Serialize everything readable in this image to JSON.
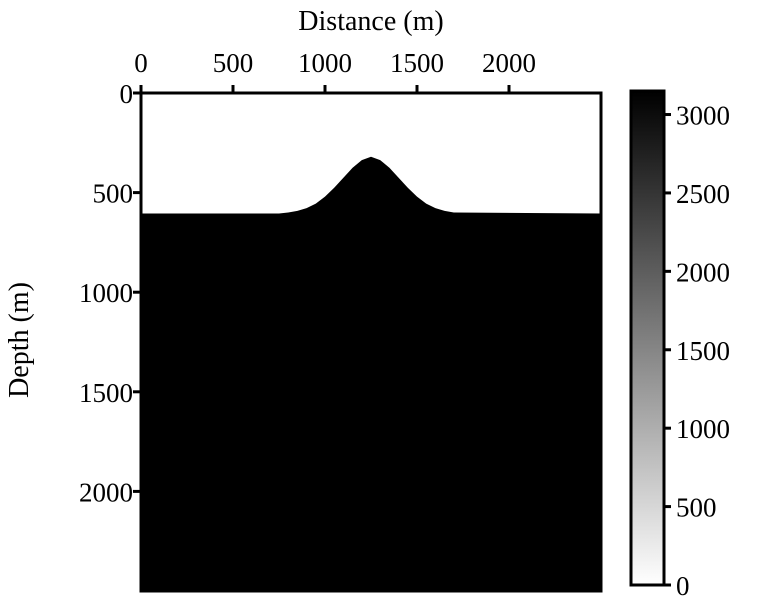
{
  "chart_data": {
    "type": "heatmap",
    "title": "",
    "xlabel": "Distance (m)",
    "ylabel": "Depth (m)",
    "x_axis_position": "top",
    "xlim": [
      0,
      2500
    ],
    "ylim": [
      2500,
      0
    ],
    "xticks": [
      0,
      500,
      1000,
      1500,
      2000
    ],
    "xtick_labels": [
      "0",
      "500",
      "1000",
      "1500",
      "2000"
    ],
    "yticks": [
      0,
      500,
      1000,
      1500,
      2000
    ],
    "ytick_labels": [
      "0",
      "500",
      "1000",
      "1500",
      "2000"
    ],
    "colormap": "gray (white = 0, black = max)",
    "colorbar": {
      "position": "right",
      "range": [
        0,
        3150
      ],
      "ticks": [
        0,
        500,
        1000,
        1500,
        2000,
        2500,
        3000
      ],
      "tick_labels": [
        "0",
        "500",
        "1000",
        "1500",
        "2000",
        "2500",
        "3000"
      ],
      "color_low": "#ffffff",
      "color_high": "#000000"
    },
    "regions": [
      {
        "value": 0,
        "color": "#ffffff",
        "description_of_extent": "above interface"
      },
      {
        "value": 3150,
        "color": "#000000",
        "description_of_extent": "below interface"
      }
    ],
    "interface": {
      "x": [
        0,
        750,
        800,
        850,
        900,
        950,
        1000,
        1050,
        1100,
        1150,
        1200,
        1250,
        1300,
        1350,
        1400,
        1450,
        1500,
        1550,
        1600,
        1650,
        1700,
        2500
      ],
      "depth": [
        605,
        605,
        600,
        592,
        578,
        555,
        520,
        476,
        425,
        375,
        337,
        320,
        337,
        375,
        425,
        476,
        520,
        555,
        578,
        592,
        600,
        605
      ]
    },
    "grid": false
  }
}
